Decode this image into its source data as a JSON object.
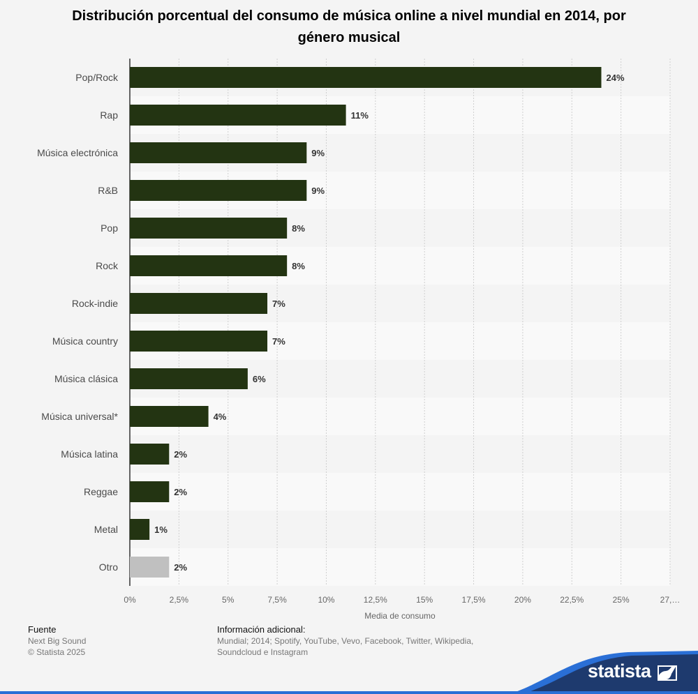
{
  "chart_data": {
    "type": "bar",
    "orientation": "horizontal",
    "title": "Distribución porcentual del consumo de música online a nivel mundial en 2014, por género musical",
    "categories": [
      "Pop/Rock",
      "Rap",
      "Música electrónica",
      "R&B",
      "Pop",
      "Rock",
      "Rock-indie",
      "Música country",
      "Música clásica",
      "Música universal*",
      "Música latina",
      "Reggae",
      "Metal",
      "Otro"
    ],
    "values": [
      24,
      11,
      9,
      9,
      8,
      8,
      7,
      7,
      6,
      4,
      2,
      2,
      1,
      2
    ],
    "value_labels": [
      "24%",
      "11%",
      "9%",
      "9%",
      "8%",
      "8%",
      "7%",
      "7%",
      "6%",
      "4%",
      "2%",
      "2%",
      "1%",
      "2%"
    ],
    "xlabel": "Media de consumo",
    "ylabel": "",
    "xlim": [
      0,
      27.5
    ],
    "x_ticks": [
      0,
      2.5,
      5,
      7.5,
      10,
      12.5,
      15,
      17.5,
      20,
      22.5,
      25,
      27.5
    ],
    "x_tick_labels": [
      "0%",
      "2,5%",
      "5%",
      "7,5%",
      "10%",
      "12,5%",
      "15%",
      "17,5%",
      "20%",
      "22,5%",
      "25%",
      "27,…"
    ],
    "grid": true,
    "colors": {
      "bar": "#233412",
      "bar_highlight": "#c0c0c0",
      "highlight_category": "Otro"
    }
  },
  "footer": {
    "source_heading": "Fuente",
    "source_name": "Next Big Sound",
    "copyright": "© Statista 2025",
    "info_heading": "Información adicional:",
    "info_text": "Mundial; 2014; Spotify, YouTube, Vevo, Facebook, Twitter, Wikipedia, Soundcloud e Instagram"
  },
  "brand": {
    "name": "statista",
    "color": "#1e3a6e",
    "accent": "#2a6fd6"
  }
}
